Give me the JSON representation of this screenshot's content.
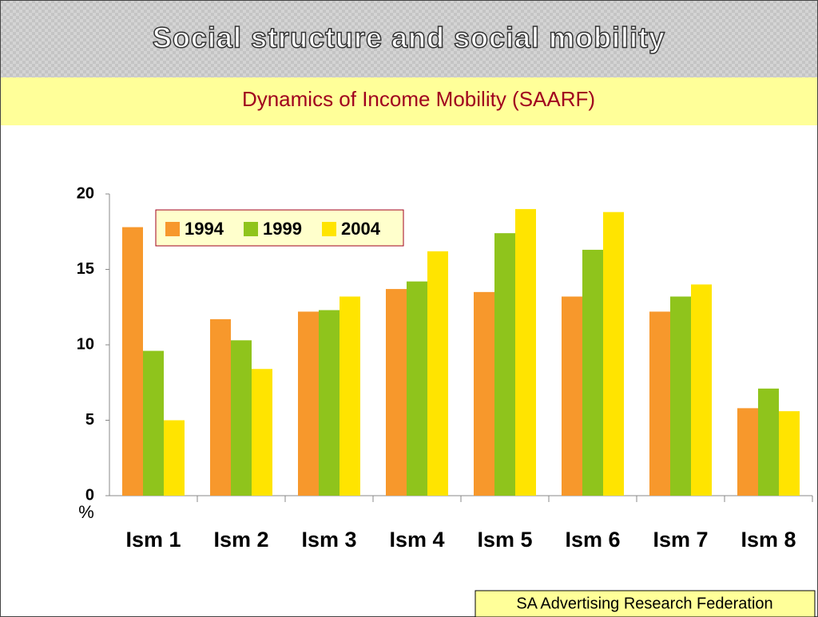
{
  "header": {
    "title": "Social structure and social mobility",
    "subtitle": "Dynamics of Income Mobility (SAARF)"
  },
  "chart_data": {
    "type": "bar",
    "categories": [
      "Ism 1",
      "Ism 2",
      "Ism 3",
      "Ism 4",
      "Ism 5",
      "Ism 6",
      "Ism 7",
      "Ism 8"
    ],
    "series": [
      {
        "name": "1994",
        "color": "#f7982c",
        "values": [
          17.8,
          11.7,
          12.2,
          13.7,
          13.5,
          13.2,
          12.2,
          5.8
        ]
      },
      {
        "name": "1999",
        "color": "#8fc41c",
        "values": [
          9.6,
          10.3,
          12.3,
          14.2,
          17.4,
          16.3,
          13.2,
          7.1
        ]
      },
      {
        "name": "2004",
        "color": "#ffe400",
        "values": [
          5.0,
          8.4,
          13.2,
          16.2,
          19.0,
          18.8,
          14.0,
          5.6
        ]
      }
    ],
    "ylim": [
      0,
      20
    ],
    "yticks": [
      0,
      5,
      10,
      15,
      20
    ],
    "y_label": "%"
  },
  "footer": {
    "source": "SA Advertising Research Federation"
  }
}
